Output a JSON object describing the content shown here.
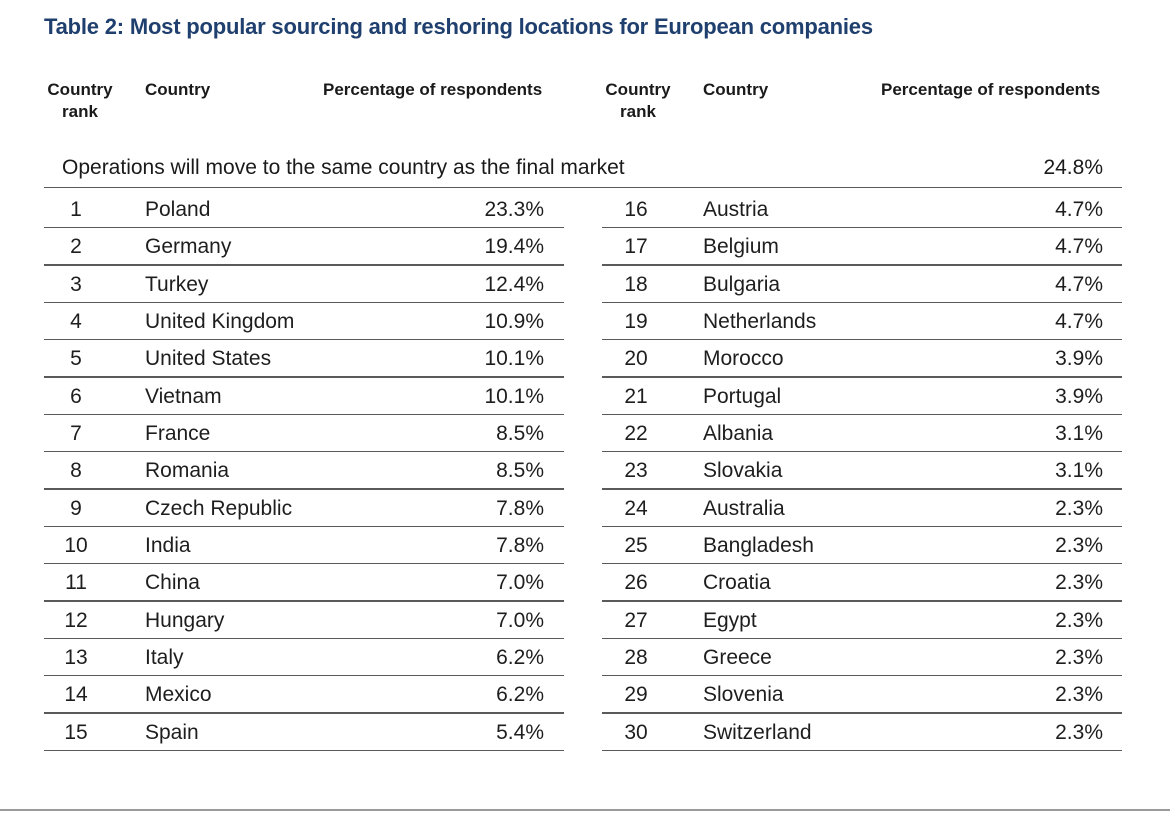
{
  "title": "Table 2: Most popular sourcing and reshoring locations for European companies",
  "headers": {
    "rank_line1": "Country",
    "rank_line2": "rank",
    "country": "Country",
    "percentage": "Percentage of respondents"
  },
  "final_market": {
    "label": "Operations will move to the same country as the final market",
    "value": "24.8%"
  },
  "left_rows": [
    {
      "rank": "1",
      "country": "Poland",
      "pct": "23.3%"
    },
    {
      "rank": "2",
      "country": "Germany",
      "pct": "19.4%"
    },
    {
      "rank": "3",
      "country": "Turkey",
      "pct": "12.4%"
    },
    {
      "rank": "4",
      "country": "United Kingdom",
      "pct": "10.9%"
    },
    {
      "rank": "5",
      "country": "United States",
      "pct": "10.1%"
    },
    {
      "rank": "6",
      "country": "Vietnam",
      "pct": "10.1%"
    },
    {
      "rank": "7",
      "country": "France",
      "pct": "8.5%"
    },
    {
      "rank": "8",
      "country": "Romania",
      "pct": "8.5%"
    },
    {
      "rank": "9",
      "country": "Czech Republic",
      "pct": "7.8%"
    },
    {
      "rank": "10",
      "country": "India",
      "pct": "7.8%"
    },
    {
      "rank": "11",
      "country": "China",
      "pct": "7.0%"
    },
    {
      "rank": "12",
      "country": "Hungary",
      "pct": "7.0%"
    },
    {
      "rank": "13",
      "country": "Italy",
      "pct": "6.2%"
    },
    {
      "rank": "14",
      "country": "Mexico",
      "pct": "6.2%"
    },
    {
      "rank": "15",
      "country": "Spain",
      "pct": "5.4%"
    }
  ],
  "right_rows": [
    {
      "rank": "16",
      "country": "Austria",
      "pct": "4.7%"
    },
    {
      "rank": "17",
      "country": "Belgium",
      "pct": "4.7%"
    },
    {
      "rank": "18",
      "country": "Bulgaria",
      "pct": "4.7%"
    },
    {
      "rank": "19",
      "country": "Netherlands",
      "pct": "4.7%"
    },
    {
      "rank": "20",
      "country": "Morocco",
      "pct": "3.9%"
    },
    {
      "rank": "21",
      "country": "Portugal",
      "pct": "3.9%"
    },
    {
      "rank": "22",
      "country": "Albania",
      "pct": "3.1%"
    },
    {
      "rank": "23",
      "country": "Slovakia",
      "pct": "3.1%"
    },
    {
      "rank": "24",
      "country": "Australia",
      "pct": "2.3%"
    },
    {
      "rank": "25",
      "country": "Bangladesh",
      "pct": "2.3%"
    },
    {
      "rank": "26",
      "country": "Croatia",
      "pct": "2.3%"
    },
    {
      "rank": "27",
      "country": "Egypt",
      "pct": "2.3%"
    },
    {
      "rank": "28",
      "country": "Greece",
      "pct": "2.3%"
    },
    {
      "rank": "29",
      "country": "Slovenia",
      "pct": "2.3%"
    },
    {
      "rank": "30",
      "country": "Switzerland",
      "pct": "2.3%"
    }
  ],
  "colors": {
    "title": "#1f3f6e",
    "text": "#1e1e1e",
    "rule": "#5a5a5a"
  }
}
